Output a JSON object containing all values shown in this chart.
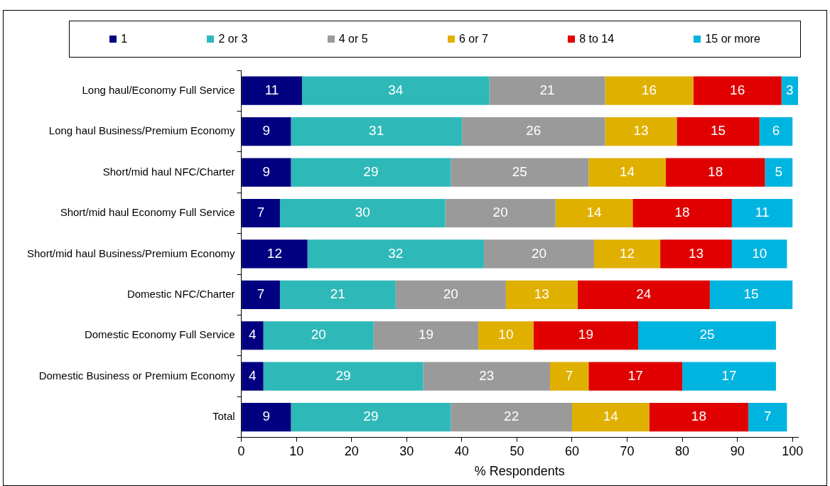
{
  "chart_data": {
    "type": "bar",
    "orientation": "horizontal",
    "stacked": true,
    "data_labels": true,
    "legend": "top",
    "grid": false,
    "xlabel": "% Respondents",
    "categories": [
      "Long haul/Economy Full Service",
      "Long haul Business/Premium Economy",
      "Short/mid haul NFC/Charter",
      "Short/mid haul Economy Full Service",
      "Short/mid haul Business/Premium Economy",
      "Domestic NFC/Charter",
      "Domestic Economy Full Service",
      "Domestic Business or Premium Economy",
      "Total"
    ],
    "xlim": [
      0,
      101
    ],
    "xticks": [
      0,
      10,
      20,
      30,
      40,
      50,
      60,
      70,
      80,
      90,
      100
    ],
    "series": [
      {
        "name": "1",
        "color": "#000080",
        "values": [
          11,
          9,
          9,
          7,
          12,
          7,
          4,
          4,
          9
        ]
      },
      {
        "name": "2 or 3",
        "color": "#2fb8b8",
        "values": [
          34,
          31,
          29,
          30,
          32,
          21,
          20,
          29,
          29
        ]
      },
      {
        "name": "4 or 5",
        "color": "#9a9a9a",
        "values": [
          21,
          26,
          25,
          20,
          20,
          20,
          19,
          23,
          22
        ]
      },
      {
        "name": "6 or 7",
        "color": "#e0b000",
        "values": [
          16,
          13,
          14,
          14,
          12,
          13,
          10,
          7,
          14
        ]
      },
      {
        "name": "8 to 14",
        "color": "#e00000",
        "values": [
          16,
          15,
          18,
          18,
          13,
          24,
          19,
          17,
          18
        ]
      },
      {
        "name": "15 or more",
        "color": "#00b4e0",
        "values": [
          3,
          6,
          5,
          11,
          10,
          15,
          25,
          17,
          7
        ]
      }
    ]
  }
}
